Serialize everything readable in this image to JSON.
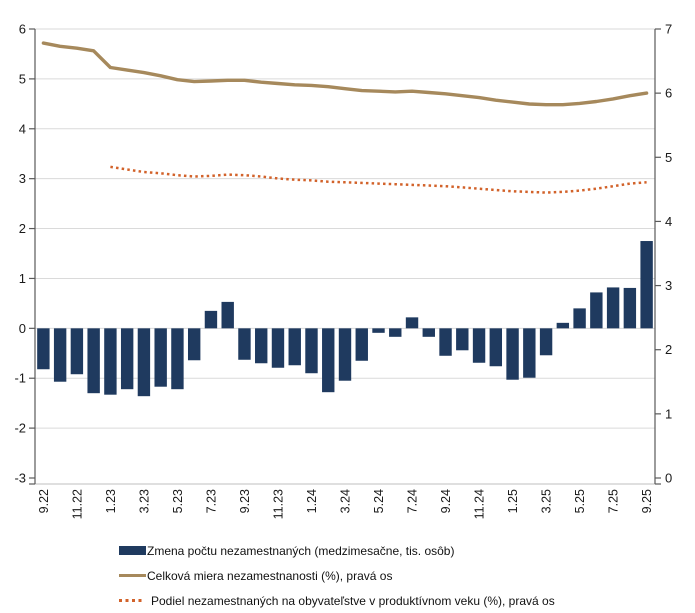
{
  "chart_data": {
    "type": "combo",
    "title": "",
    "categories": [
      "9.22",
      "10.22",
      "11.22",
      "12.22",
      "1.23",
      "2.23",
      "3.23",
      "4.23",
      "5.23",
      "6.23",
      "7.23",
      "8.23",
      "9.23",
      "10.23",
      "11.23",
      "12.23",
      "1.24",
      "2.24",
      "3.24",
      "4.24",
      "5.24",
      "6.24",
      "7.24",
      "8.24",
      "9.24",
      "10.24",
      "11.24",
      "12.24",
      "1.25",
      "2.25",
      "3.25",
      "4.25",
      "5.25",
      "6.25",
      "7.25",
      "8.25",
      "9.25"
    ],
    "x_tick_labels": [
      "9.22",
      "11.22",
      "1.23",
      "3.23",
      "5.23",
      "7.23",
      "9.23",
      "11.23",
      "1.24",
      "3.24",
      "5.24",
      "7.24",
      "9.24",
      "11.24",
      "1.25",
      "3.25",
      "5.25",
      "7.25",
      "9.25"
    ],
    "left_axis": {
      "min": -3,
      "max": 6,
      "ticks": [
        6,
        5,
        4,
        3,
        2,
        1,
        0,
        -1,
        -2,
        -3
      ]
    },
    "right_axis": {
      "min": 0,
      "max": 7,
      "ticks": [
        7,
        6,
        5,
        4,
        3,
        2,
        1,
        0
      ]
    },
    "grid": true,
    "grid_color": "#dadada",
    "axis_color": "#595959",
    "category_line_color": "#bfbfbf",
    "legend_position": "bottom",
    "series": [
      {
        "name": "Zmena počtu nezamestnaných (medzimesačne, tis. osôb)",
        "type": "bar",
        "axis": "left",
        "color": "#1F3A5F",
        "values": [
          -0.82,
          -1.07,
          -0.92,
          -1.3,
          -1.33,
          -1.22,
          -1.36,
          -1.17,
          -1.22,
          -0.64,
          0.35,
          0.53,
          -0.63,
          -0.7,
          -0.79,
          -0.74,
          -0.9,
          -1.28,
          -1.05,
          -0.65,
          -0.09,
          -0.17,
          0.22,
          -0.17,
          -0.55,
          -0.44,
          -0.69,
          -0.76,
          -1.03,
          -0.99,
          -0.54,
          0.11,
          0.4,
          0.72,
          0.82,
          0.81,
          1.75
        ]
      },
      {
        "name": "Celková miera nezamestnanosti (%), pravá os",
        "type": "line",
        "axis": "right",
        "color": "#A6895C",
        "values": [
          6.78,
          6.73,
          6.7,
          6.66,
          6.4,
          6.36,
          6.32,
          6.27,
          6.21,
          6.18,
          6.19,
          6.2,
          6.2,
          6.17,
          6.15,
          6.13,
          6.12,
          6.1,
          6.07,
          6.04,
          6.03,
          6.02,
          6.03,
          6.01,
          5.99,
          5.96,
          5.93,
          5.89,
          5.86,
          5.83,
          5.82,
          5.82,
          5.84,
          5.87,
          5.91,
          5.96,
          6.0
        ]
      },
      {
        "name": "Podiel nezamestnaných na obyvateľstve v produktívnom veku (%), pravá os",
        "type": "dotted-line",
        "axis": "right",
        "color": "#D2622A",
        "values": [
          null,
          null,
          null,
          null,
          4.85,
          4.81,
          4.77,
          4.75,
          4.72,
          4.7,
          4.71,
          4.73,
          4.72,
          4.7,
          4.67,
          4.65,
          4.64,
          4.62,
          4.61,
          4.6,
          4.59,
          4.58,
          4.57,
          4.56,
          4.55,
          4.53,
          4.51,
          4.49,
          4.47,
          4.46,
          4.45,
          4.46,
          4.48,
          4.51,
          4.55,
          4.59,
          4.61
        ]
      }
    ]
  }
}
